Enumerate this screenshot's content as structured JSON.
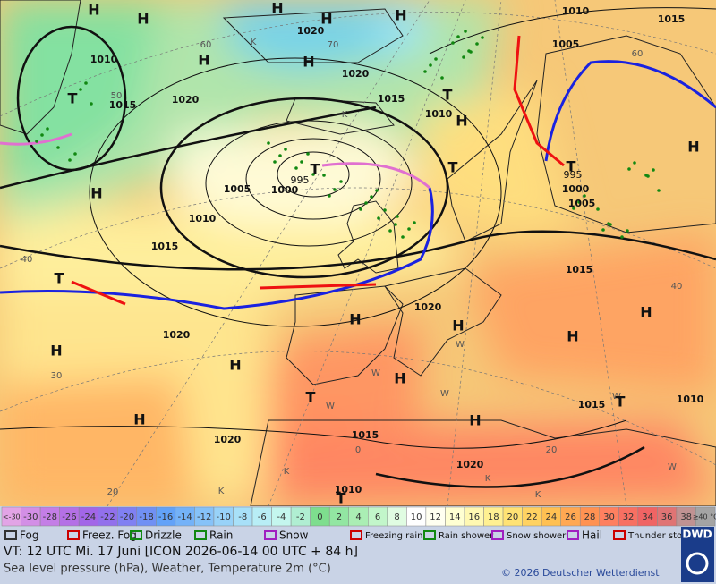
{
  "map": {
    "labels": [
      "H",
      "H",
      "H",
      "H",
      "H",
      "1020",
      "60",
      "70",
      "K",
      "H",
      "H",
      "1010",
      "1020",
      "50",
      "1015",
      "1020",
      "1015",
      "T",
      "1010",
      "H",
      "K",
      "1010",
      "1015",
      "1005",
      "60",
      "T",
      "H",
      "T",
      "995",
      "1005",
      "1000",
      "1010",
      "1015",
      "T",
      "995",
      "1000",
      "1005",
      "T",
      "H",
      "1015",
      "40",
      "40",
      "T",
      "H",
      "1020",
      "H",
      "W",
      "H",
      "H",
      "1020",
      "H",
      "H",
      "30",
      "T",
      "W",
      "W",
      "H",
      "W",
      "H",
      "W",
      "1015",
      "T",
      "1010",
      "H",
      "1020",
      "1015",
      "0",
      "20",
      "W",
      "1020",
      "K",
      "K",
      "K",
      "K",
      "20",
      "1010",
      "T"
    ]
  },
  "legend": {
    "scale": [
      {
        "label": "<-30",
        "color": "#e2a4e6"
      },
      {
        "label": "-30",
        "color": "#d38fe6"
      },
      {
        "label": "-28",
        "color": "#c47ee6"
      },
      {
        "label": "-26",
        "color": "#b470e6"
      },
      {
        "label": "-24",
        "color": "#a266e8"
      },
      {
        "label": "-22",
        "color": "#9270ec"
      },
      {
        "label": "-20",
        "color": "#8080f2"
      },
      {
        "label": "-18",
        "color": "#7090f4"
      },
      {
        "label": "-16",
        "color": "#62a2f8"
      },
      {
        "label": "-14",
        "color": "#74b2f8"
      },
      {
        "label": "-12",
        "color": "#86c2f8"
      },
      {
        "label": "-10",
        "color": "#98d2f8"
      },
      {
        "label": "-8",
        "color": "#a8e0f8"
      },
      {
        "label": "-6",
        "color": "#b8eef6"
      },
      {
        "label": "-4",
        "color": "#c4f6ee"
      },
      {
        "label": "-2",
        "color": "#b0eed2"
      },
      {
        "label": "0",
        "color": "#7ede8e"
      },
      {
        "label": "2",
        "color": "#92e6a2"
      },
      {
        "label": "4",
        "color": "#aaeeb4"
      },
      {
        "label": "6",
        "color": "#c2f6ca"
      },
      {
        "label": "8",
        "color": "#e0fce2"
      },
      {
        "label": "10",
        "color": "#ffffff"
      },
      {
        "label": "12",
        "color": "#fffff0"
      },
      {
        "label": "14",
        "color": "#ffffd2"
      },
      {
        "label": "16",
        "color": "#fff8b2"
      },
      {
        "label": "18",
        "color": "#fff092"
      },
      {
        "label": "20",
        "color": "#ffe274"
      },
      {
        "label": "22",
        "color": "#ffd262"
      },
      {
        "label": "24",
        "color": "#ffc052"
      },
      {
        "label": "26",
        "color": "#ffa852"
      },
      {
        "label": "28",
        "color": "#ff9252"
      },
      {
        "label": "30",
        "color": "#ff8060"
      },
      {
        "label": "32",
        "color": "#f87062"
      },
      {
        "label": "34",
        "color": "#f06464"
      },
      {
        "label": "36",
        "color": "#e07474"
      },
      {
        "label": "38",
        "color": "#c09292"
      },
      {
        "label": "≥40 °C",
        "color": "#a4a4a4"
      }
    ],
    "symbols": [
      "Fog",
      "Freez. Fog",
      "Drizzle",
      "Rain",
      "Snow",
      "Freezing rain",
      "Rain shower",
      "Snow shower",
      "Hail",
      "Thunder storm"
    ]
  },
  "footer": {
    "valid_time": "VT: 12 UTC Mi.   17 Juni [ICON 2026-06-14  00 UTC + 84 h]",
    "description": "Sea level pressure (hPa), Weather, Temperature 2m (°C)",
    "copyright": "© 2026 Deutscher Wetterdienst",
    "logo": "DWD"
  }
}
